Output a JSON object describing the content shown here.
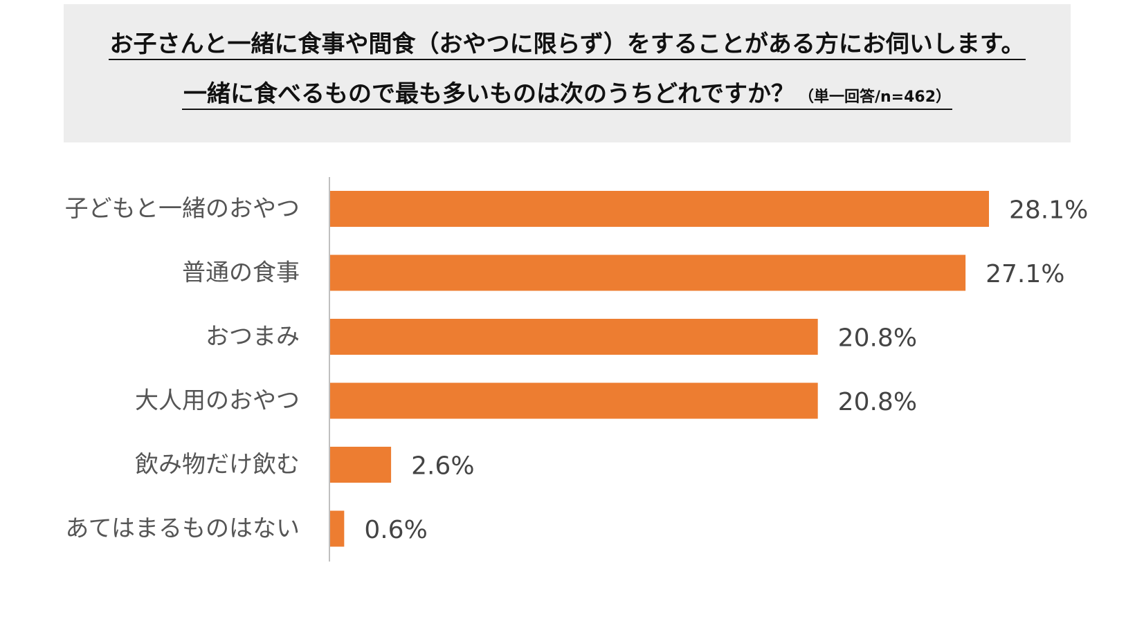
{
  "title": {
    "line1": "お子さんと一緒に食事や間食（おやつに限らず）をすることがある方にお伺いします。",
    "line2": "一緒に食べるもので最も多いものは次のうちどれですか？",
    "note": "（単一回答/n=462）"
  },
  "colors": {
    "bar": "#ED7D31",
    "axis": "#BFBFBF",
    "title_bg": "#EDEDED"
  },
  "chart_data": {
    "type": "bar",
    "orientation": "horizontal",
    "categories": [
      "子どもと一緒のおやつ",
      "普通の食事",
      "おつまみ",
      "大人用のおやつ",
      "飲み物だけ飲む",
      "あてはまるものはない"
    ],
    "values": [
      28.1,
      27.1,
      20.8,
      20.8,
      2.6,
      0.6
    ],
    "value_labels": [
      "28.1%",
      "27.1%",
      "20.8%",
      "20.8%",
      "2.6%",
      "0.6%"
    ],
    "unit": "%",
    "xlim": [
      0,
      28.1
    ],
    "grid": false,
    "legend": "none"
  }
}
